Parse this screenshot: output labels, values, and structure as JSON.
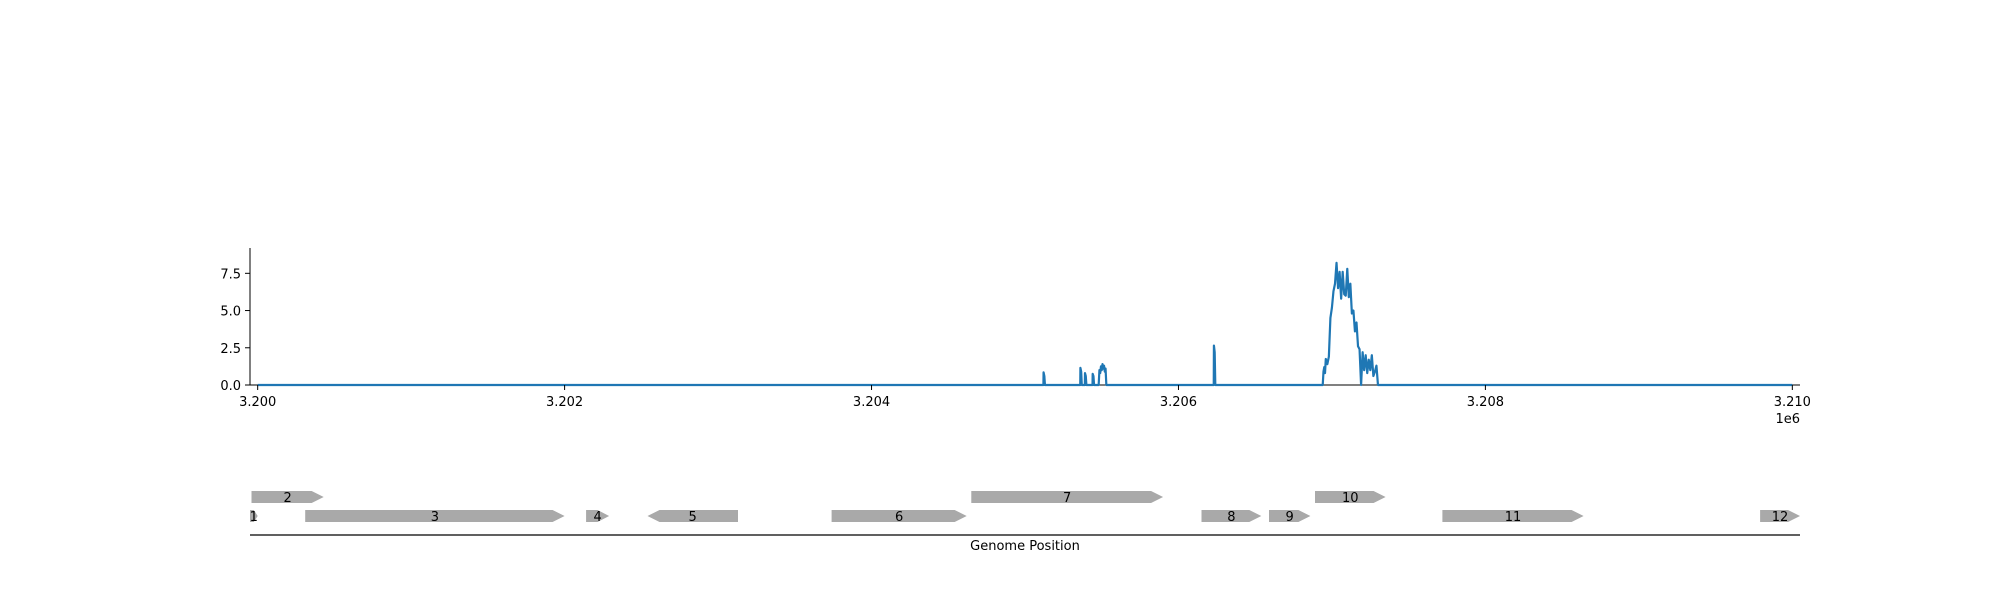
{
  "chart_data": [
    {
      "type": "line",
      "title": "",
      "xlabel": "",
      "ylabel": "",
      "x_offset_label": "1e6",
      "xlim": [
        3.19995,
        3.21005
      ],
      "ylim": [
        0,
        9.2
      ],
      "x_ticks": [
        3.2,
        3.202,
        3.204,
        3.206,
        3.208,
        3.21
      ],
      "x_tick_labels": [
        "3.200",
        "3.202",
        "3.204",
        "3.206",
        "3.208",
        "3.210"
      ],
      "y_ticks": [
        0,
        2.5,
        5,
        7.5
      ],
      "y_tick_labels": [
        "0.0",
        "2.5",
        "5.0",
        "7.5"
      ],
      "grid": false,
      "color": "#1f77b4",
      "series": [
        {
          "x": [
            3.2,
            3.20512,
            3.205121,
            3.205126,
            3.20513,
            3.20536,
            3.205361,
            3.205366,
            3.20537,
            3.20539,
            3.205391,
            3.205396,
            3.2054,
            3.20544,
            3.205441,
            3.205446,
            3.20545,
            3.20548,
            3.205485,
            3.20549,
            3.205495,
            3.2055,
            3.205505,
            3.20551,
            3.205515,
            3.20552,
            3.205525,
            3.20553,
            3.20623,
            3.206231,
            3.206236,
            3.20624,
            3.20694,
            3.206945,
            3.20695,
            3.206955,
            3.20696,
            3.20697,
            3.20698,
            3.20699,
            3.207,
            3.20701,
            3.20702,
            3.20703,
            3.20704,
            3.20705,
            3.20706,
            3.20707,
            3.20708,
            3.20709,
            3.2071,
            3.20711,
            3.20712,
            3.20713,
            3.20714,
            3.20715,
            3.20716,
            3.20717,
            3.20718,
            3.20719,
            3.2072,
            3.20721,
            3.20722,
            3.20723,
            3.20724,
            3.20725,
            3.20726,
            3.20727,
            3.20728,
            3.20729,
            3.2073,
            3.207305,
            3.21
          ],
          "y": [
            0,
            0,
            0.85,
            0.6,
            0,
            0,
            1.15,
            0.9,
            0,
            0,
            0.8,
            0.6,
            0,
            0,
            0.75,
            0.6,
            0,
            0,
            1.0,
            0.8,
            1.25,
            1.0,
            1.4,
            1.1,
            1.3,
            0.9,
            1.1,
            0,
            0,
            2.65,
            2.2,
            0,
            0,
            0.9,
            1.2,
            0.8,
            1.75,
            1.4,
            1.9,
            4.5,
            5.2,
            6.3,
            6.8,
            8.2,
            6.5,
            7.6,
            5.8,
            7.6,
            6.1,
            6.0,
            7.8,
            5.9,
            6.8,
            4.8,
            5.0,
            3.6,
            4.2,
            2.6,
            2.4,
            0.0,
            2.2,
            1.0,
            2.0,
            0.8,
            1.7,
            1.0,
            2.0,
            0.6,
            0.9,
            1.3,
            0.0,
            0,
            0
          ]
        }
      ]
    },
    {
      "type": "gene_track",
      "xlabel": "Genome Position",
      "color": "#a9a9a9",
      "genes": [
        {
          "label": "1",
          "start": 3.19995,
          "end": 3.2,
          "strand": "+",
          "row": 0
        },
        {
          "label": "2",
          "start": 3.19996,
          "end": 3.20043,
          "strand": "+",
          "row": 1
        },
        {
          "label": "3",
          "start": 3.20031,
          "end": 3.202,
          "strand": "+",
          "row": 0
        },
        {
          "label": "4",
          "start": 3.20214,
          "end": 3.20229,
          "strand": "+",
          "row": 0
        },
        {
          "label": "5",
          "start": 3.20254,
          "end": 3.20313,
          "strand": "-",
          "row": 0
        },
        {
          "label": "6",
          "start": 3.20374,
          "end": 3.20462,
          "strand": "+",
          "row": 0
        },
        {
          "label": "7",
          "start": 3.20465,
          "end": 3.2059,
          "strand": "+",
          "row": 1
        },
        {
          "label": "8",
          "start": 3.20615,
          "end": 3.20654,
          "strand": "+",
          "row": 0
        },
        {
          "label": "9",
          "start": 3.20659,
          "end": 3.20686,
          "strand": "+",
          "row": 0
        },
        {
          "label": "10",
          "start": 3.20689,
          "end": 3.20735,
          "strand": "+",
          "row": 1
        },
        {
          "label": "11",
          "start": 3.20772,
          "end": 3.20864,
          "strand": "+",
          "row": 0
        },
        {
          "label": "12",
          "start": 3.20979,
          "end": 3.21005,
          "strand": "+",
          "row": 0
        }
      ]
    }
  ]
}
